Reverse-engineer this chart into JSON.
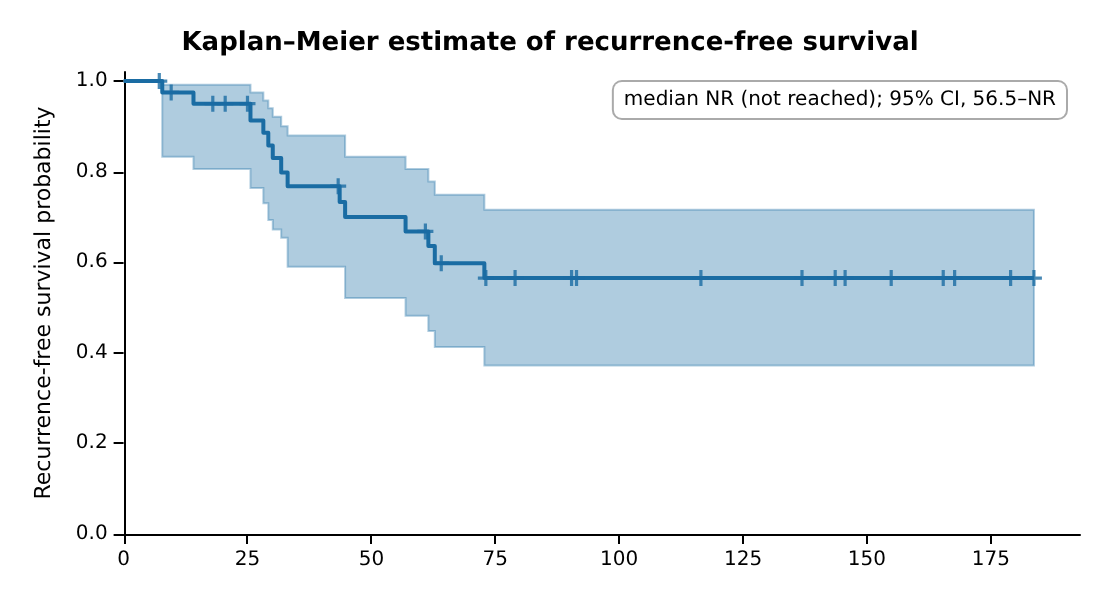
{
  "chart_data": {
    "type": "step",
    "title": "Kaplan–Meier estimate of recurrence-free survival",
    "ylabel": "Recurrence-free survival probability",
    "annotations": [
      "median NR (not reached); 95% CI, 56.5–NR"
    ],
    "xlim": [
      0,
      193
    ],
    "xticks": [
      0,
      25,
      50,
      75,
      100,
      125,
      150,
      175
    ],
    "ylim": [
      0,
      1.02
    ],
    "yticks": [
      {
        "value": 0,
        "label": "0.0"
      },
      {
        "value": 0.2,
        "label": "0.2"
      },
      {
        "value": 0.4,
        "label": "0.4"
      },
      {
        "value": 0.6,
        "label": "0.6"
      },
      {
        "value": 0.8,
        "label": "0.8"
      },
      {
        "value": 1,
        "label": "1.0"
      }
    ],
    "grid": false,
    "series": [
      {
        "color": "#1a6ca3",
        "x": [
          0,
          7.8,
          14.1,
          25.6,
          28.2,
          29.2,
          30.1,
          31.8,
          33.1,
          43.6,
          44.7,
          56.9,
          61.5,
          62.8,
          72.8,
          183.7
        ],
        "values": [
          1.0,
          0.975,
          0.95,
          0.913,
          0.886,
          0.858,
          0.83,
          0.798,
          0.768,
          0.733,
          0.7,
          0.668,
          0.636,
          0.598,
          0.565,
          0.565
        ],
        "upper": [
          1.0,
          0.992,
          0.992,
          0.975,
          0.957,
          0.94,
          0.921,
          0.9,
          0.88,
          0.88,
          0.833,
          0.806,
          0.778,
          0.749,
          0.716,
          0.716
        ],
        "lower": [
          1.0,
          0.833,
          0.806,
          0.764,
          0.73,
          0.693,
          0.672,
          0.654,
          0.59,
          0.59,
          0.521,
          0.482,
          0.448,
          0.413,
          0.372,
          0.372
        ]
      },
      {
        "type": "scatter",
        "marker": "cross",
        "color": "#1a6ca3",
        "x": [
          7.2,
          9.6,
          18,
          20.5,
          25,
          43.3,
          60.9,
          64.1,
          73.1,
          79,
          90.4,
          91.4,
          116.5,
          136.9,
          143.6,
          145.6,
          154.9,
          165.4,
          167.7,
          179,
          183.7
        ],
        "values": [
          1.0,
          0.975,
          0.95,
          0.95,
          0.95,
          0.768,
          0.668,
          0.598,
          0.565,
          0.565,
          0.565,
          0.565,
          0.565,
          0.565,
          0.565,
          0.565,
          0.565,
          0.565,
          0.565,
          0.565,
          0.565
        ]
      }
    ]
  }
}
